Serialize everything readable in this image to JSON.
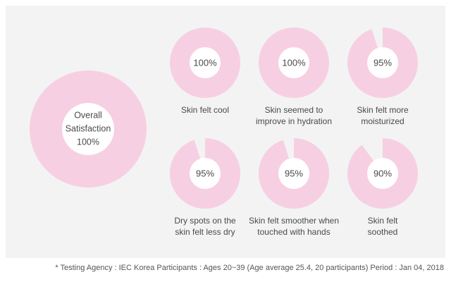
{
  "colors": {
    "ring": "#f7cfe2",
    "hole": "#ffffff",
    "panel": "#f3f3f3",
    "text": "#4a4a4a"
  },
  "chart_data": {
    "type": "pie",
    "items": [
      {
        "id": "overall",
        "label_lines": [
          "Overall",
          "Satisfaction"
        ],
        "value": 100,
        "display": "100%"
      },
      {
        "id": "cool",
        "label_lines": [
          "Skin felt cool"
        ],
        "value": 100,
        "display": "100%"
      },
      {
        "id": "hydration",
        "label_lines": [
          "Skin seemed to",
          "improve in hydration"
        ],
        "value": 100,
        "display": "100%"
      },
      {
        "id": "moisturized",
        "label_lines": [
          "Skin felt more",
          "moisturized"
        ],
        "value": 95,
        "display": "95%"
      },
      {
        "id": "dry-spots",
        "label_lines": [
          "Dry spots on the",
          "skin felt less dry"
        ],
        "value": 95,
        "display": "95%"
      },
      {
        "id": "smoother",
        "label_lines": [
          "Skin felt smoother when",
          "touched with hands"
        ],
        "value": 95,
        "display": "95%"
      },
      {
        "id": "soothed",
        "label_lines": [
          "Skin felt",
          "soothed"
        ],
        "value": 90,
        "display": "90%"
      }
    ]
  },
  "footnote": "* Testing Agency : IEC Korea   Participants : Ages 20~39 (Age average 25.4, 20 participants)   Period : Jan 04, 2018"
}
